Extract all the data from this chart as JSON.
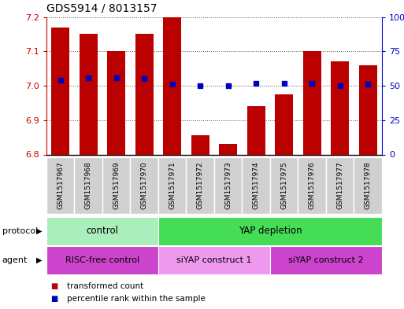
{
  "title": "GDS5914 / 8013157",
  "samples": [
    "GSM1517967",
    "GSM1517968",
    "GSM1517969",
    "GSM1517970",
    "GSM1517971",
    "GSM1517972",
    "GSM1517973",
    "GSM1517974",
    "GSM1517975",
    "GSM1517976",
    "GSM1517977",
    "GSM1517978"
  ],
  "transformed_counts": [
    7.17,
    7.15,
    7.1,
    7.15,
    7.2,
    6.855,
    6.83,
    6.94,
    6.975,
    7.1,
    7.07,
    7.06
  ],
  "percentile_ranks": [
    54,
    56,
    56,
    55,
    51,
    50,
    50,
    52,
    52,
    52,
    50,
    51
  ],
  "y_min": 6.8,
  "y_max": 7.2,
  "y_ticks": [
    6.8,
    6.9,
    7.0,
    7.1,
    7.2
  ],
  "right_y_ticks": [
    0,
    25,
    50,
    75,
    100
  ],
  "bar_color": "#bb0000",
  "dot_color": "#0000bb",
  "background_color": "#ffffff",
  "grid_color": "#555555",
  "protocol_groups": [
    {
      "label": "control",
      "start": 0,
      "end": 3,
      "color": "#aaeebb"
    },
    {
      "label": "YAP depletion",
      "start": 4,
      "end": 11,
      "color": "#44dd55"
    }
  ],
  "agent_groups": [
    {
      "label": "RISC-free control",
      "start": 0,
      "end": 3,
      "color": "#cc44cc"
    },
    {
      "label": "siYAP construct 1",
      "start": 4,
      "end": 7,
      "color": "#ee99ee"
    },
    {
      "label": "siYAP construct 2",
      "start": 8,
      "end": 11,
      "color": "#cc44cc"
    }
  ],
  "tick_label_color": "#cc0000",
  "right_tick_color": "#0000cc",
  "title_color": "#000000",
  "sample_box_color": "#d0d0d0",
  "sample_box_edge": "#ffffff"
}
